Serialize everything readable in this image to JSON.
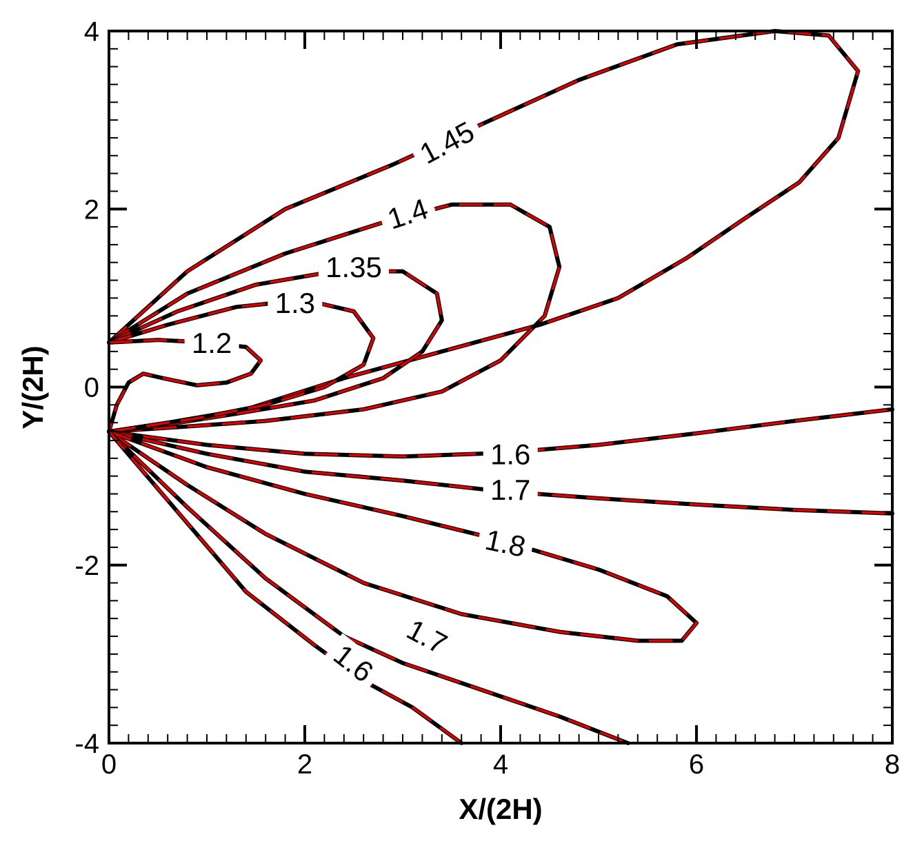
{
  "chart_data": {
    "type": "line",
    "title": "",
    "xlabel": "X/(2H)",
    "ylabel": "Y/(2H)",
    "xlim": [
      0,
      8
    ],
    "ylim": [
      -4,
      4
    ],
    "xticks": [
      "0",
      "2",
      "4",
      "6",
      "8"
    ],
    "yticks": [
      "-4",
      "-2",
      "0",
      "2",
      "4"
    ],
    "grid": false,
    "colors": {
      "solid": "#000000",
      "dashed": "#e00000"
    },
    "series": [
      {
        "label": "1.45",
        "points": [
          [
            0,
            0.5
          ],
          [
            0.8,
            1.3
          ],
          [
            1.8,
            2.0
          ],
          [
            2.9,
            2.5
          ],
          [
            3.8,
            2.95
          ],
          [
            4.8,
            3.45
          ],
          [
            5.8,
            3.85
          ],
          [
            6.8,
            4.0
          ],
          [
            7.35,
            3.95
          ],
          [
            7.65,
            3.55
          ],
          [
            7.45,
            2.8
          ],
          [
            7.05,
            2.3
          ],
          [
            6.5,
            1.9
          ],
          [
            5.9,
            1.45
          ],
          [
            5.2,
            1.0
          ],
          [
            4.4,
            0.7
          ],
          [
            3.4,
            0.4
          ],
          [
            2.4,
            0.1
          ],
          [
            1.4,
            -0.25
          ],
          [
            0.6,
            -0.4
          ],
          [
            0,
            -0.5
          ]
        ]
      },
      {
        "label": "1.4",
        "points": [
          [
            0,
            0.5
          ],
          [
            0.8,
            1.05
          ],
          [
            1.8,
            1.5
          ],
          [
            2.8,
            1.85
          ],
          [
            3.5,
            2.05
          ],
          [
            4.1,
            2.05
          ],
          [
            4.5,
            1.8
          ],
          [
            4.6,
            1.35
          ],
          [
            4.45,
            0.8
          ],
          [
            4.0,
            0.3
          ],
          [
            3.4,
            -0.05
          ],
          [
            2.6,
            -0.25
          ],
          [
            1.6,
            -0.38
          ],
          [
            0.7,
            -0.45
          ],
          [
            0,
            -0.5
          ]
        ]
      },
      {
        "label": "1.35",
        "points": [
          [
            0,
            0.5
          ],
          [
            0.7,
            0.85
          ],
          [
            1.5,
            1.15
          ],
          [
            2.3,
            1.3
          ],
          [
            3.0,
            1.3
          ],
          [
            3.35,
            1.05
          ],
          [
            3.4,
            0.75
          ],
          [
            3.2,
            0.4
          ],
          [
            2.8,
            0.1
          ],
          [
            2.1,
            -0.15
          ],
          [
            1.3,
            -0.3
          ],
          [
            0.6,
            -0.42
          ],
          [
            0,
            -0.5
          ]
        ]
      },
      {
        "label": "1.3",
        "points": [
          [
            0,
            0.5
          ],
          [
            0.6,
            0.7
          ],
          [
            1.3,
            0.9
          ],
          [
            2.0,
            0.98
          ],
          [
            2.5,
            0.85
          ],
          [
            2.7,
            0.55
          ],
          [
            2.6,
            0.25
          ],
          [
            2.2,
            0.0
          ],
          [
            1.6,
            -0.2
          ],
          [
            0.9,
            -0.35
          ],
          [
            0,
            -0.5
          ]
        ]
      },
      {
        "label": "1.2",
        "points": [
          [
            0,
            0.5
          ],
          [
            0.5,
            0.53
          ],
          [
            1.0,
            0.5
          ],
          [
            1.4,
            0.45
          ],
          [
            1.55,
            0.3
          ],
          [
            1.45,
            0.15
          ],
          [
            1.2,
            0.05
          ],
          [
            0.9,
            0.02
          ],
          [
            0.55,
            0.1
          ],
          [
            0.35,
            0.15
          ],
          [
            0.2,
            0.05
          ],
          [
            0.08,
            -0.2
          ],
          [
            0,
            -0.5
          ]
        ]
      },
      {
        "label": "1.6",
        "points": [
          [
            0,
            -0.5
          ],
          [
            1.0,
            -0.65
          ],
          [
            2.0,
            -0.75
          ],
          [
            3.0,
            -0.78
          ],
          [
            4.0,
            -0.74
          ],
          [
            5.0,
            -0.65
          ],
          [
            6.0,
            -0.52
          ],
          [
            7.0,
            -0.38
          ],
          [
            8.0,
            -0.25
          ]
        ]
      },
      {
        "label": "1.7",
        "points": [
          [
            0,
            -0.5
          ],
          [
            1.0,
            -0.75
          ],
          [
            2.0,
            -0.95
          ],
          [
            3.0,
            -1.05
          ],
          [
            4.0,
            -1.17
          ],
          [
            5.0,
            -1.25
          ],
          [
            6.0,
            -1.32
          ],
          [
            7.0,
            -1.38
          ],
          [
            8.0,
            -1.42
          ]
        ]
      },
      {
        "label": "1.8",
        "points": [
          [
            0,
            -0.5
          ],
          [
            1.0,
            -0.9
          ],
          [
            2.0,
            -1.2
          ],
          [
            3.0,
            -1.45
          ],
          [
            4.0,
            -1.72
          ],
          [
            5.0,
            -2.05
          ],
          [
            5.7,
            -2.35
          ],
          [
            6.0,
            -2.65
          ],
          [
            5.85,
            -2.85
          ],
          [
            5.4,
            -2.85
          ],
          [
            4.6,
            -2.75
          ],
          [
            3.6,
            -2.55
          ],
          [
            2.6,
            -2.2
          ],
          [
            1.6,
            -1.65
          ],
          [
            0.8,
            -1.1
          ],
          [
            0,
            -0.5
          ]
        ]
      },
      {
        "label": "1.7",
        "points": [
          [
            0,
            -0.5
          ],
          [
            0.8,
            -1.35
          ],
          [
            1.6,
            -2.15
          ],
          [
            2.4,
            -2.8
          ],
          [
            3.0,
            -3.1
          ],
          [
            3.8,
            -3.4
          ],
          [
            4.6,
            -3.7
          ],
          [
            5.3,
            -4.0
          ]
        ]
      },
      {
        "label": "1.6",
        "points": [
          [
            0,
            -0.5
          ],
          [
            0.7,
            -1.4
          ],
          [
            1.4,
            -2.3
          ],
          [
            2.1,
            -2.9
          ],
          [
            2.6,
            -3.3
          ],
          [
            3.1,
            -3.6
          ],
          [
            3.6,
            -4.0
          ]
        ]
      }
    ],
    "labels": [
      {
        "text": "1.45",
        "x": 3.45,
        "y": 2.75,
        "angle": -28
      },
      {
        "text": "1.4",
        "x": 3.05,
        "y": 1.95,
        "angle": -18
      },
      {
        "text": "1.35",
        "x": 2.5,
        "y": 1.35,
        "angle": 0
      },
      {
        "text": "1.3",
        "x": 1.9,
        "y": 0.95,
        "angle": 0
      },
      {
        "text": "1.2",
        "x": 1.05,
        "y": 0.5,
        "angle": 0
      },
      {
        "text": "1.6",
        "x": 4.1,
        "y": -0.75,
        "angle": 0
      },
      {
        "text": "1.7",
        "x": 4.1,
        "y": -1.15,
        "angle": 0
      },
      {
        "text": "1.8",
        "x": 4.05,
        "y": -1.75,
        "angle": 12
      },
      {
        "text": "1.7",
        "x": 3.25,
        "y": -2.8,
        "angle": 28
      },
      {
        "text": "1.6",
        "x": 2.5,
        "y": -3.1,
        "angle": 38
      }
    ]
  }
}
